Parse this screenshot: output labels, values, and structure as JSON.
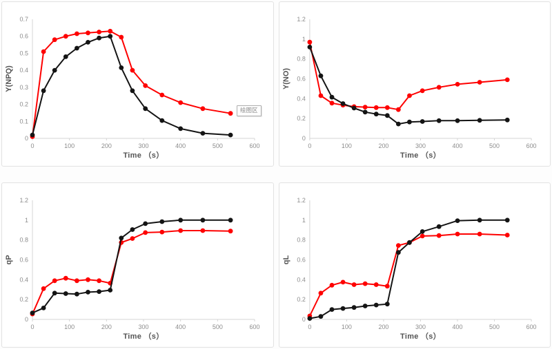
{
  "app": {
    "tooltip_label": "绘图区"
  },
  "colors": {
    "red_series": "#fe0000",
    "black_series": "#141414",
    "axis_line": "#d4d4d4",
    "tick_label": "#8c8c8c",
    "axis_title": "#555555",
    "panel_border": "#e2e2e2",
    "panel_bg": "#ffffff",
    "tooltip_border": "#adadad",
    "tooltip_text": "#8a8a8a"
  },
  "chart_data": [
    {
      "id": "ynpq",
      "type": "line",
      "title": "",
      "xlabel": "Time （s）",
      "ylabel": "Y(NPQ)",
      "xlim": [
        0,
        600
      ],
      "ylim": [
        0,
        0.7
      ],
      "xticks": [
        0,
        100,
        200,
        300,
        400,
        500,
        600
      ],
      "ytick_values": [
        0,
        0.1,
        0.2,
        0.3,
        0.4,
        0.5,
        0.6,
        0.7
      ],
      "ytick_labels": [
        "0",
        "0.1",
        "0.2",
        "0.3",
        "0.4",
        "0.5",
        "0.6",
        "0.7"
      ],
      "grid": false,
      "legend_position": "none",
      "x": [
        0,
        30,
        60,
        90,
        120,
        150,
        180,
        210,
        240,
        270,
        305,
        350,
        400,
        460,
        535
      ],
      "series": [
        {
          "name": "red",
          "color": "#fe0000",
          "values": [
            0.01,
            0.51,
            0.58,
            0.6,
            0.615,
            0.62,
            0.625,
            0.63,
            0.595,
            0.4,
            0.31,
            0.255,
            0.21,
            0.175,
            0.147
          ]
        },
        {
          "name": "black",
          "color": "#141414",
          "values": [
            0.02,
            0.28,
            0.4,
            0.48,
            0.53,
            0.565,
            0.59,
            0.6,
            0.415,
            0.28,
            0.175,
            0.105,
            0.057,
            0.03,
            0.02
          ]
        }
      ]
    },
    {
      "id": "yno",
      "type": "line",
      "title": "",
      "xlabel": "Time （s）",
      "ylabel": "Y(NO)",
      "xlim": [
        0,
        600
      ],
      "ylim": [
        0,
        1.2
      ],
      "xticks": [
        0,
        100,
        200,
        300,
        400,
        500,
        600
      ],
      "ytick_values": [
        0,
        0.2,
        0.4,
        0.6,
        0.8,
        1,
        1.2
      ],
      "ytick_labels": [
        "0",
        "0.2",
        "0.4",
        "0.6",
        "0.8",
        "1",
        "1.2"
      ],
      "grid": false,
      "legend_position": "none",
      "x": [
        0,
        30,
        60,
        90,
        120,
        150,
        180,
        210,
        240,
        270,
        305,
        350,
        400,
        460,
        535
      ],
      "series": [
        {
          "name": "red",
          "color": "#fe0000",
          "values": [
            0.97,
            0.43,
            0.355,
            0.335,
            0.32,
            0.315,
            0.31,
            0.31,
            0.29,
            0.43,
            0.48,
            0.515,
            0.545,
            0.565,
            0.59
          ]
        },
        {
          "name": "black",
          "color": "#141414",
          "values": [
            0.92,
            0.63,
            0.415,
            0.35,
            0.305,
            0.265,
            0.245,
            0.23,
            0.145,
            0.165,
            0.17,
            0.178,
            0.178,
            0.182,
            0.185
          ]
        }
      ]
    },
    {
      "id": "qp",
      "type": "line",
      "title": "",
      "xlabel": "Time （s）",
      "ylabel": "qP",
      "xlim": [
        0,
        600
      ],
      "ylim": [
        0,
        1.2
      ],
      "xticks": [
        0,
        100,
        200,
        300,
        400,
        500,
        600
      ],
      "ytick_values": [
        0,
        0.2,
        0.4,
        0.6,
        0.8,
        1,
        1.2
      ],
      "ytick_labels": [
        "0",
        "0.2",
        "0.4",
        "0.6",
        "0.8",
        "1",
        "1.2"
      ],
      "grid": false,
      "legend_position": "none",
      "x": [
        0,
        30,
        60,
        90,
        120,
        150,
        180,
        210,
        240,
        270,
        305,
        350,
        400,
        460,
        535
      ],
      "series": [
        {
          "name": "red",
          "color": "#fe0000",
          "values": [
            0.055,
            0.31,
            0.39,
            0.415,
            0.39,
            0.4,
            0.39,
            0.365,
            0.775,
            0.815,
            0.875,
            0.88,
            0.895,
            0.895,
            0.89
          ]
        },
        {
          "name": "black",
          "color": "#141414",
          "values": [
            0.065,
            0.115,
            0.265,
            0.26,
            0.255,
            0.275,
            0.28,
            0.295,
            0.82,
            0.905,
            0.965,
            0.985,
            1.0,
            1.0,
            1.0
          ]
        }
      ]
    },
    {
      "id": "ql",
      "type": "line",
      "title": "",
      "xlabel": "Time （s）",
      "ylabel": "qL",
      "xlim": [
        0,
        600
      ],
      "ylim": [
        0,
        1.2
      ],
      "xticks": [
        0,
        100,
        200,
        300,
        400,
        500,
        600
      ],
      "ytick_values": [
        0,
        0.2,
        0.4,
        0.6,
        0.8,
        1,
        1.2
      ],
      "ytick_labels": [
        "0",
        "0.2",
        "0.4",
        "0.6",
        "0.8",
        "1",
        "1.2"
      ],
      "grid": false,
      "legend_position": "none",
      "x": [
        0,
        30,
        60,
        90,
        120,
        150,
        180,
        210,
        240,
        270,
        305,
        350,
        400,
        460,
        535
      ],
      "series": [
        {
          "name": "red",
          "color": "#fe0000",
          "values": [
            0.035,
            0.265,
            0.345,
            0.375,
            0.35,
            0.36,
            0.35,
            0.335,
            0.745,
            0.775,
            0.84,
            0.845,
            0.86,
            0.86,
            0.85
          ]
        },
        {
          "name": "black",
          "color": "#141414",
          "values": [
            0.01,
            0.03,
            0.1,
            0.11,
            0.12,
            0.135,
            0.145,
            0.155,
            0.675,
            0.775,
            0.885,
            0.935,
            0.995,
            1.0,
            1.0
          ]
        }
      ]
    }
  ]
}
